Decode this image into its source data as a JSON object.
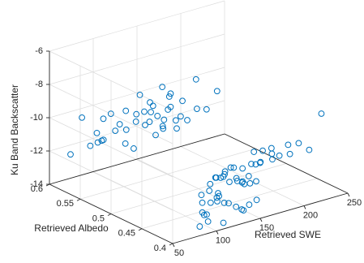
{
  "chart_data": {
    "type": "scatter3d",
    "xlabel": "Retrieved SWE",
    "ylabel": "Retrieved Albedo",
    "zlabel": "Ku Band Backscatter",
    "xlim": [
      50,
      250
    ],
    "ylim": [
      0.4,
      0.6
    ],
    "zlim": [
      -14,
      -6
    ],
    "xticks": [
      "50",
      "100",
      "150",
      "200",
      "250"
    ],
    "yticks": [
      "0.4",
      "0.45",
      "0.5",
      "0.55",
      "0.6"
    ],
    "zticks": [
      "-14",
      "-12",
      "-10",
      "-8",
      "-6"
    ],
    "grid": true,
    "marker": "circle",
    "color": "#0072bd",
    "series": [
      {
        "points": [
          [
            60,
            0.58,
            -12.0
          ],
          [
            66,
            0.57,
            -9.7
          ],
          [
            72,
            0.565,
            -11.4
          ],
          [
            70,
            0.55,
            -10.9
          ],
          [
            76,
            0.56,
            -10.6
          ],
          [
            78,
            0.555,
            -11.0
          ],
          [
            73,
            0.545,
            -10.7
          ],
          [
            82,
            0.558,
            -9.8
          ],
          [
            85,
            0.55,
            -9.4
          ],
          [
            88,
            0.54,
            -9.9
          ],
          [
            90,
            0.55,
            -10.5
          ],
          [
            92,
            0.535,
            -10.2
          ],
          [
            95,
            0.54,
            -9.2
          ],
          [
            96,
            0.525,
            -9.6
          ],
          [
            100,
            0.53,
            -9.3
          ],
          [
            102,
            0.52,
            -9.0
          ],
          [
            104,
            0.53,
            -8.2
          ],
          [
            106,
            0.515,
            -9.0
          ],
          [
            108,
            0.52,
            -9.7
          ],
          [
            110,
            0.51,
            -9.2
          ],
          [
            112,
            0.52,
            -8.8
          ],
          [
            114,
            0.505,
            -9.4
          ],
          [
            116,
            0.51,
            -9.9
          ],
          [
            118,
            0.5,
            -8.6
          ],
          [
            120,
            0.505,
            -8.1
          ],
          [
            122,
            0.51,
            -9.0
          ],
          [
            124,
            0.5,
            -9.5
          ],
          [
            126,
            0.495,
            -9.2
          ],
          [
            98,
            0.545,
            -11.3
          ],
          [
            104,
            0.54,
            -11.6
          ],
          [
            110,
            0.53,
            -10.1
          ],
          [
            115,
            0.52,
            -10.6
          ],
          [
            120,
            0.515,
            -10.2
          ],
          [
            125,
            0.5,
            -10.0
          ],
          [
            130,
            0.49,
            -9.4
          ],
          [
            134,
            0.48,
            -8.6
          ],
          [
            140,
            0.49,
            -7.1
          ],
          [
            105,
            0.515,
            -8.4
          ],
          [
            112,
            0.505,
            -7.4
          ],
          [
            118,
            0.5,
            -7.8
          ],
          [
            128,
            0.495,
            -8.3
          ],
          [
            145,
            0.48,
            -8.8
          ],
          [
            150,
            0.47,
            -7.6
          ],
          [
            100,
            0.42,
            -13.4
          ],
          [
            105,
            0.43,
            -13.5
          ],
          [
            110,
            0.43,
            -13.7
          ],
          [
            112,
            0.44,
            -13.2
          ],
          [
            115,
            0.42,
            -12.8
          ],
          [
            118,
            0.435,
            -13.2
          ],
          [
            120,
            0.44,
            -12.6
          ],
          [
            124,
            0.43,
            -12.8
          ],
          [
            128,
            0.45,
            -12.5
          ],
          [
            130,
            0.44,
            -12.9
          ],
          [
            134,
            0.45,
            -12.2
          ],
          [
            136,
            0.44,
            -12.0
          ],
          [
            140,
            0.45,
            -12.3
          ],
          [
            142,
            0.46,
            -12.5
          ],
          [
            145,
            0.45,
            -12.0
          ],
          [
            148,
            0.455,
            -12.3
          ],
          [
            150,
            0.45,
            -12.7
          ],
          [
            152,
            0.44,
            -12.5
          ],
          [
            155,
            0.455,
            -12.0
          ],
          [
            158,
            0.45,
            -12.6
          ],
          [
            160,
            0.44,
            -12.8
          ],
          [
            162,
            0.46,
            -12.2
          ],
          [
            165,
            0.45,
            -12.9
          ],
          [
            168,
            0.455,
            -13.1
          ],
          [
            170,
            0.445,
            -13.0
          ],
          [
            172,
            0.46,
            -12.4
          ],
          [
            175,
            0.45,
            -12.0
          ],
          [
            178,
            0.44,
            -11.8
          ],
          [
            180,
            0.45,
            -12.1
          ],
          [
            182,
            0.445,
            -11.9
          ],
          [
            185,
            0.46,
            -11.6
          ],
          [
            188,
            0.45,
            -11.4
          ],
          [
            192,
            0.44,
            -11.8
          ],
          [
            195,
            0.445,
            -11.6
          ],
          [
            198,
            0.45,
            -11.4
          ],
          [
            200,
            0.44,
            -11.7
          ],
          [
            205,
            0.43,
            -11.5
          ],
          [
            210,
            0.44,
            -11.2
          ],
          [
            215,
            0.43,
            -11.0
          ],
          [
            220,
            0.42,
            -11.3
          ],
          [
            135,
            0.43,
            -13.4
          ],
          [
            140,
            0.425,
            -13.6
          ],
          [
            145,
            0.42,
            -13.8
          ],
          [
            150,
            0.43,
            -14.0
          ],
          [
            155,
            0.425,
            -13.7
          ],
          [
            160,
            0.42,
            -13.4
          ],
          [
            130,
            0.43,
            -13.3
          ],
          [
            125,
            0.435,
            -13.0
          ],
          [
            165,
            0.44,
            -12.4
          ],
          [
            170,
            0.435,
            -12.7
          ],
          [
            118,
            0.45,
            -13.0
          ],
          [
            122,
            0.42,
            -14.2
          ],
          [
            108,
            0.425,
            -14.0
          ],
          [
            102,
            0.43,
            -14.3
          ],
          [
            248,
            0.44,
            -9.9
          ]
        ]
      }
    ]
  }
}
